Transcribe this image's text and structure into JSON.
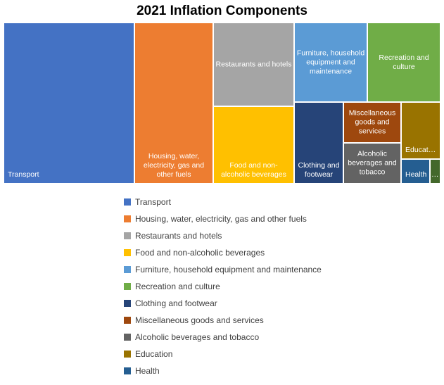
{
  "chart_data": {
    "type": "treemap",
    "title": "2021 Inflation Components",
    "items": [
      {
        "name": "Transport",
        "label": "Transport",
        "color": "#4472C4"
      },
      {
        "name": "Housing, water, electricity, gas and other fuels",
        "label": "Housing, water, electricity, gas and other fuels",
        "color": "#ED7D31"
      },
      {
        "name": "Restaurants and hotels",
        "label": "Restaurants and hotels",
        "color": "#A5A5A5"
      },
      {
        "name": "Food and non-alcoholic beverages",
        "label": "Food and non-alcoholic beverages",
        "color": "#FFC000"
      },
      {
        "name": "Furniture, household equipment and maintenance",
        "label": "Furniture, household equipment and maintenance",
        "color": "#5B9BD5"
      },
      {
        "name": "Recreation and culture",
        "label": "Recreation and culture",
        "color": "#70AD47"
      },
      {
        "name": "Clothing and footwear",
        "label": "Clothing and footwear",
        "color": "#264478"
      },
      {
        "name": "Miscellaneous goods and services",
        "label": "Miscellaneous goods and services",
        "color": "#9E480E"
      },
      {
        "name": "Alcoholic beverages and tobacco",
        "label": "Alcoholic beverages and tobacco",
        "color": "#636363"
      },
      {
        "name": "Education",
        "label": "Educat…",
        "color": "#997300"
      },
      {
        "name": "Health",
        "label": "Health",
        "color": "#255E91"
      },
      {
        "name": "",
        "label": "…",
        "color": "#43682B"
      }
    ],
    "legend": {
      "position": "bottom"
    }
  }
}
